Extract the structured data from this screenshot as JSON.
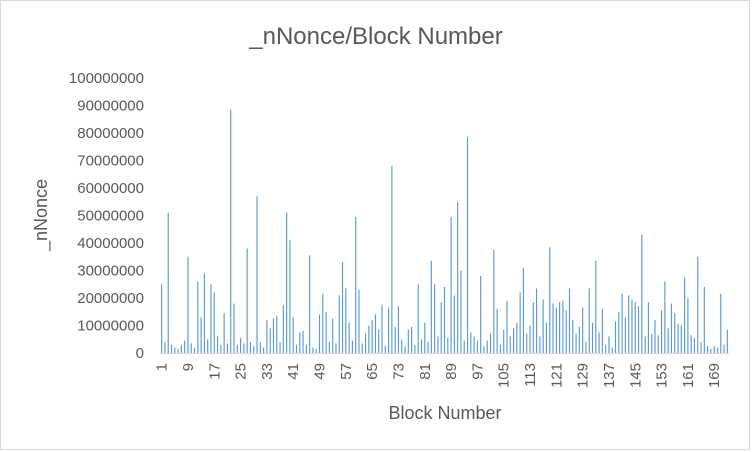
{
  "chart_data": {
    "type": "bar",
    "title": "_nNonce/Block Number",
    "xlabel": "Block Number",
    "ylabel": "_nNonce",
    "ylim": [
      0,
      100000000
    ],
    "y_ticks": [
      "0",
      "10000000",
      "20000000",
      "30000000",
      "40000000",
      "50000000",
      "60000000",
      "70000000",
      "80000000",
      "90000000",
      "100000000"
    ],
    "x_tick_labels": [
      "1",
      "9",
      "17",
      "25",
      "33",
      "41",
      "49",
      "57",
      "65",
      "73",
      "81",
      "89",
      "97",
      "105",
      "113",
      "121",
      "129",
      "137",
      "145",
      "153",
      "161",
      "169"
    ],
    "grid": false,
    "bar_color": "#5b9bd5",
    "series": [
      {
        "categories_start": 1,
        "values": [
          25000000,
          4000000,
          51000000,
          3000000,
          2000000,
          1500000,
          3000000,
          4500000,
          35000000,
          3500000,
          1800000,
          26000000,
          13000000,
          29000000,
          5000000,
          25000000,
          22000000,
          6000000,
          3000000,
          14500000,
          3500000,
          88500000,
          18000000,
          3000000,
          5500000,
          3500000,
          38000000,
          4000000,
          2500000,
          57000000,
          4000000,
          2000000,
          12000000,
          9000000,
          12500000,
          13500000,
          4000000,
          17500000,
          51000000,
          41000000,
          13000000,
          3000000,
          7500000,
          8000000,
          3000000,
          35500000,
          2000000,
          1500000,
          14000000,
          21500000,
          15000000,
          4000000,
          12500000,
          3500000,
          21000000,
          33000000,
          23500000,
          11000000,
          4500000,
          49500000,
          23000000,
          3500000,
          7000000,
          10000000,
          12000000,
          14000000,
          8500000,
          17500000,
          2500000,
          16500000,
          68000000,
          9500000,
          17000000,
          5000000,
          2500000,
          8500000,
          9500000,
          3000000,
          25000000,
          5000000,
          11000000,
          4000000,
          33500000,
          25000000,
          6000000,
          18500000,
          24000000,
          5500000,
          49500000,
          21000000,
          55000000,
          30000000,
          4500000,
          78500000,
          7500000,
          6000000,
          4500000,
          28000000,
          2500000,
          4500000,
          7000000,
          37500000,
          16000000,
          3000000,
          8500000,
          19000000,
          6000000,
          9000000,
          11000000,
          22000000,
          31000000,
          7000000,
          10000000,
          18500000,
          23500000,
          6000000,
          19500000,
          11000000,
          38500000,
          18000000,
          16500000,
          18500000,
          19000000,
          15500000,
          23500000,
          12000000,
          7000000,
          9500000,
          16500000,
          4000000,
          23500000,
          11000000,
          33500000,
          7500000,
          16000000,
          3000000,
          6000000,
          2000000,
          11500000,
          15000000,
          21500000,
          13000000,
          21000000,
          19500000,
          18500000,
          17000000,
          43000000,
          6000000,
          18500000,
          7000000,
          12000000,
          6500000,
          15500000,
          26000000,
          9000000,
          18000000,
          14500000,
          10500000,
          10000000,
          27500000,
          20000000,
          6500000,
          5500000,
          35000000,
          4000000,
          24000000,
          2500000,
          1500000,
          2500000,
          2000000,
          21500000,
          3000000,
          8500000
        ]
      }
    ]
  }
}
